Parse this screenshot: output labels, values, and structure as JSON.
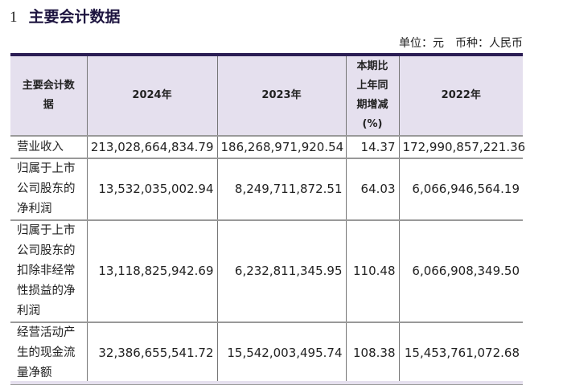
{
  "section": {
    "number": "1",
    "title": "主要会计数据"
  },
  "unit_label": "单位：元　币种：人民币",
  "table": {
    "headers": [
      "主要会计数据",
      "2024年",
      "2023年",
      "本期比上年同期增减(%)",
      "2022年"
    ],
    "rows": [
      [
        "营业收入",
        "213,028,664,834.79",
        "186,268,971,920.54",
        "14.37",
        "172,990,857,221.36"
      ],
      [
        "归属于上市公司股东的净利润",
        "13,532,035,002.94",
        "8,249,711,872.51",
        "64.03",
        "6,066,946,564.19"
      ],
      [
        "归属于上市公司股东的扣除非经常性损益的净利润",
        "13,118,825,942.69",
        "6,232,811,345.95",
        "110.48",
        "6,066,908,349.50"
      ],
      [
        "经营活动产生的现金流量净额",
        "32,386,655,541.72",
        "15,542,003,495.74",
        "108.38",
        "15,453,761,072.68"
      ]
    ]
  }
}
